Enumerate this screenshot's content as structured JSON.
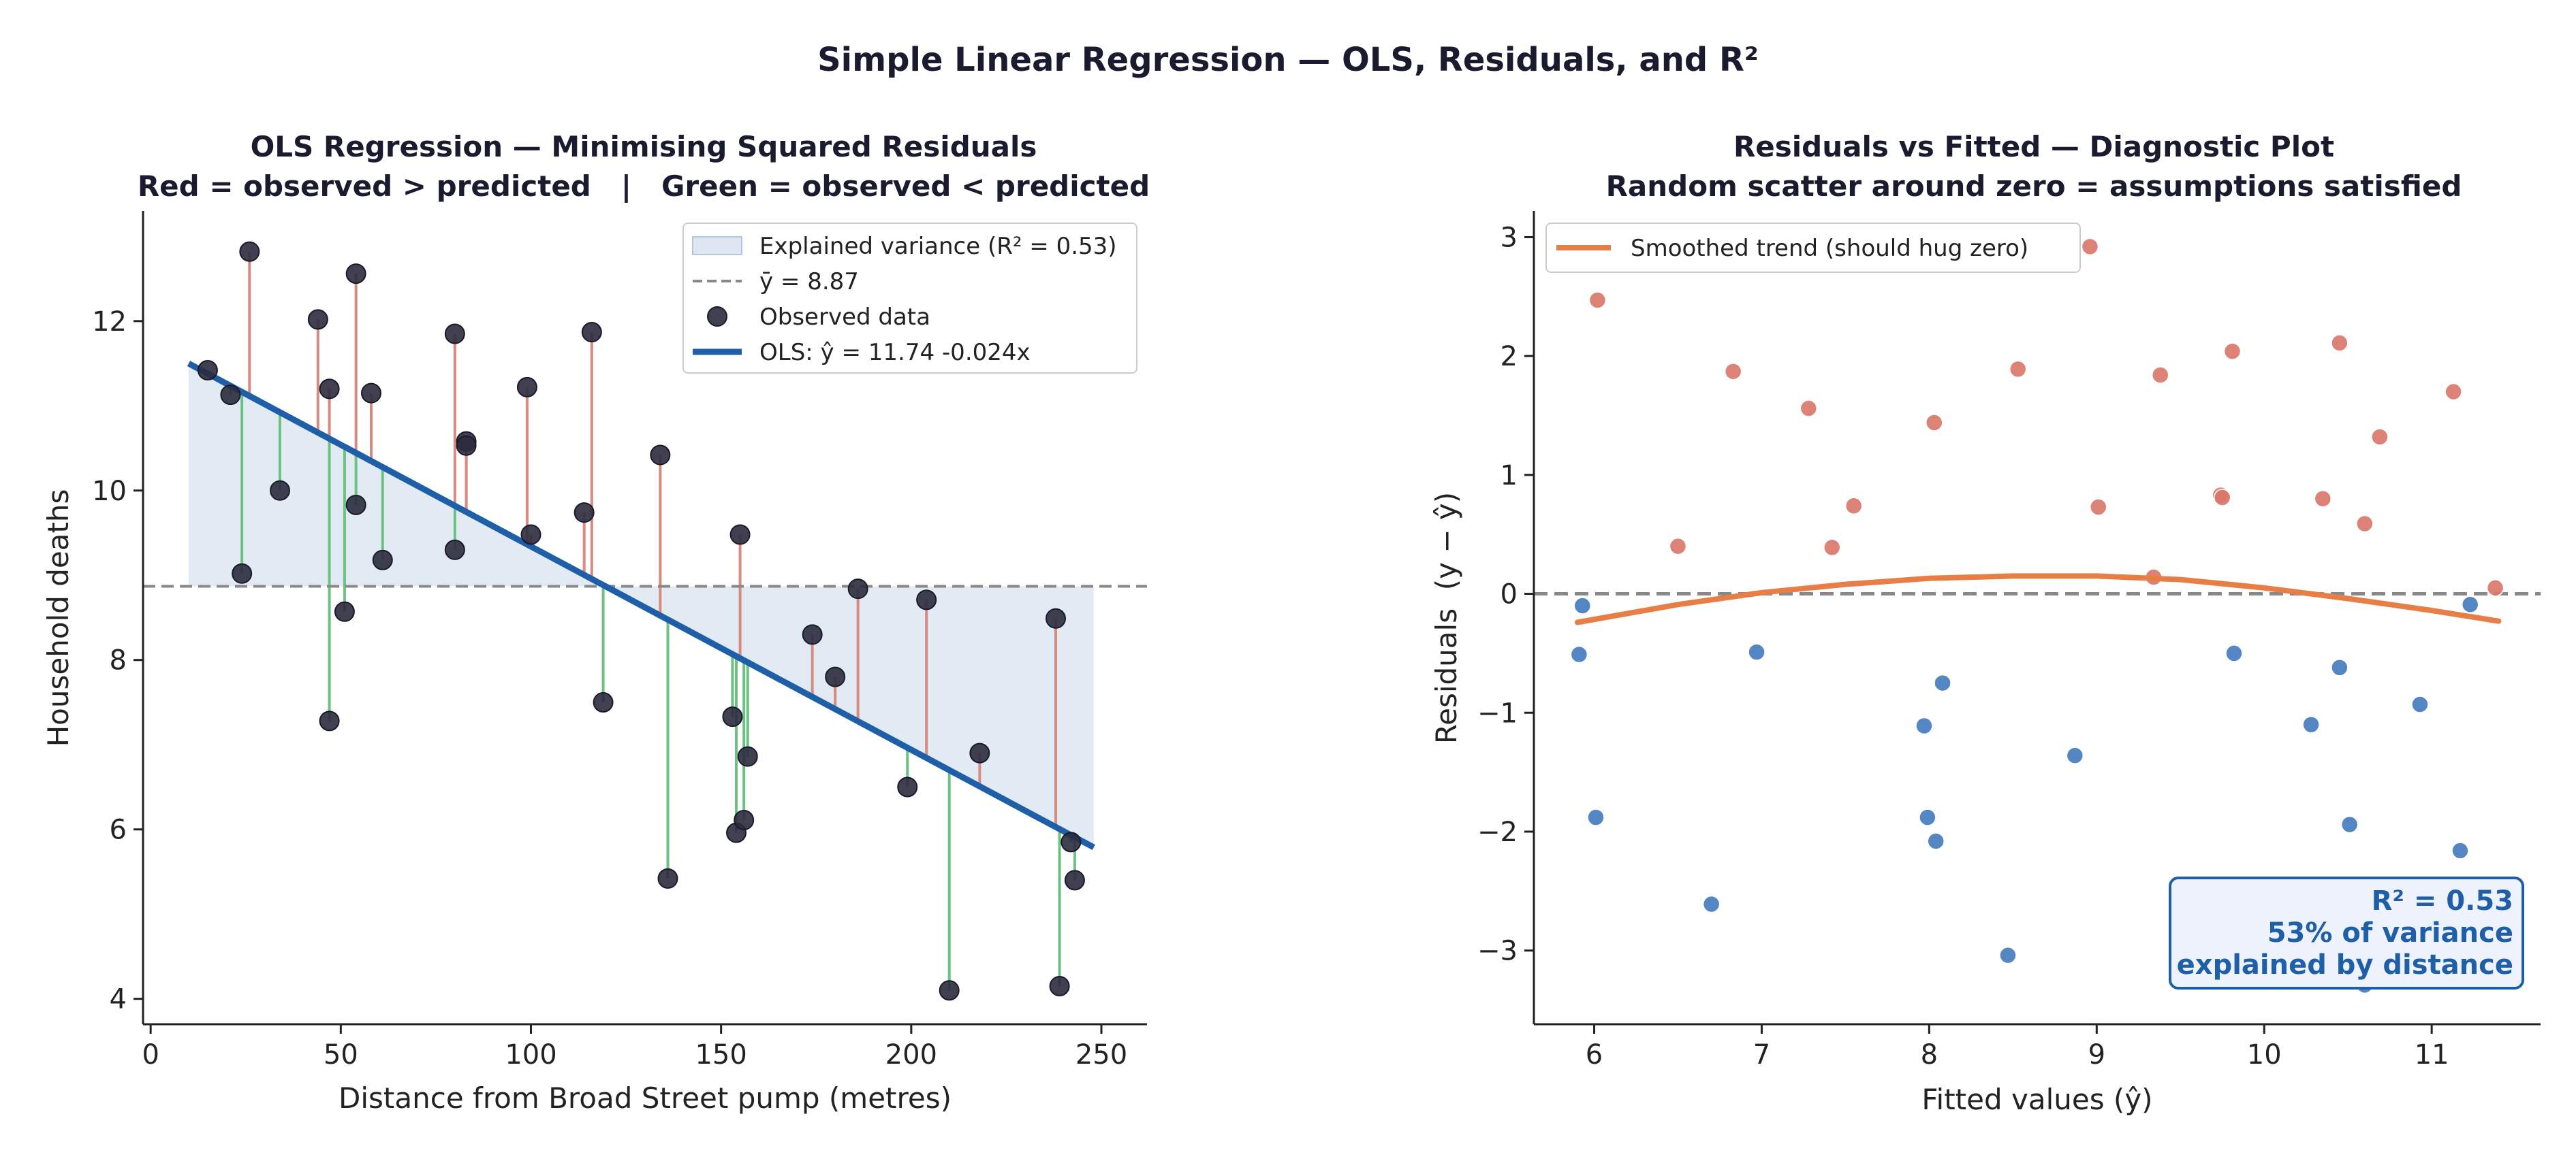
{
  "figure": {
    "suptitle": "Simple Linear Regression — OLS, Residuals, and R²"
  },
  "colors": {
    "ols_line": "#1f5fa8",
    "shade": "#dde6f2",
    "mean_line": "#888888",
    "point": "#2b2b3d",
    "residual_pos": "#d98a80",
    "residual_neg": "#6cc183",
    "resid_pos_point": "#d9776a",
    "resid_neg_point": "#4a80bf",
    "trend": "#e77e45",
    "ann_bg": "#edf2fc",
    "ann_border": "#1f5fa8"
  },
  "chart_data": [
    {
      "type": "scatter",
      "title": "OLS Regression — Minimising Squared Residuals",
      "subtitle": "Red = observed > predicted   |   Green = observed < predicted",
      "xlabel": "Distance from Broad Street pump (metres)",
      "ylabel": "Household deaths",
      "xlim": [
        -2,
        262
      ],
      "ylim": [
        3.7,
        13.3
      ],
      "xticks": [
        0,
        50,
        100,
        150,
        200,
        250
      ],
      "yticks": [
        4,
        6,
        8,
        10,
        12
      ],
      "ytick_labels": [
        "4",
        "6",
        "8",
        "10",
        "12"
      ],
      "grid": false,
      "legend": {
        "location": "upper right",
        "entries": {
          "explained": "Explained variance (R² = 0.53)",
          "mean": "ȳ = 8.87",
          "observed": "Observed data",
          "ols": "OLS: ŷ = 11.74 -0.024x"
        }
      },
      "ols": {
        "intercept": 11.74,
        "slope": -0.024,
        "x_range": [
          10,
          248
        ]
      },
      "mean_y": 8.87,
      "points": [
        [
          15,
          11.42
        ],
        [
          21,
          11.13
        ],
        [
          24,
          9.02
        ],
        [
          26,
          12.82
        ],
        [
          34,
          10.0
        ],
        [
          44,
          12.02
        ],
        [
          47,
          7.28
        ],
        [
          47,
          11.2
        ],
        [
          51,
          8.57
        ],
        [
          54,
          9.83
        ],
        [
          54,
          12.56
        ],
        [
          58,
          11.15
        ],
        [
          61,
          9.18
        ],
        [
          80,
          9.3
        ],
        [
          80,
          11.85
        ],
        [
          83,
          10.58
        ],
        [
          83,
          10.53
        ],
        [
          99,
          11.22
        ],
        [
          100,
          9.48
        ],
        [
          114,
          9.74
        ],
        [
          116,
          11.87
        ],
        [
          119,
          7.5
        ],
        [
          134,
          10.42
        ],
        [
          136,
          5.42
        ],
        [
          153,
          7.33
        ],
        [
          154,
          5.96
        ],
        [
          155,
          9.48
        ],
        [
          156,
          6.11
        ],
        [
          157,
          6.86
        ],
        [
          174,
          8.3
        ],
        [
          180,
          7.8
        ],
        [
          186,
          8.84
        ],
        [
          199,
          6.5
        ],
        [
          204,
          8.71
        ],
        [
          210,
          4.1
        ],
        [
          218,
          6.9
        ],
        [
          238,
          8.49
        ],
        [
          239,
          4.15
        ],
        [
          242,
          5.85
        ],
        [
          243,
          5.4
        ]
      ]
    },
    {
      "type": "scatter",
      "title": "Residuals vs Fitted — Diagnostic Plot",
      "subtitle": "Random scatter around zero = assumptions satisfied",
      "xlabel": "Fitted values (ŷ)",
      "ylabel": "Residuals  (y − ŷ)",
      "xlim": [
        5.64,
        11.65
      ],
      "ylim": [
        -3.62,
        3.22
      ],
      "xticks": [
        6,
        7,
        8,
        9,
        10,
        11
      ],
      "yticks": [
        -3,
        -2,
        -1,
        0,
        1,
        2,
        3
      ],
      "ytick_labels": [
        "−3",
        "−2",
        "−1",
        "0",
        "1",
        "2",
        "3"
      ],
      "grid": false,
      "legend": {
        "location": "upper left",
        "entries": {
          "trend": "Smoothed trend (should hug zero)"
        }
      },
      "zero_line": 0,
      "annotation": {
        "location": "lower right",
        "lines": [
          "R² = 0.53",
          "53% of variance",
          "explained by distance"
        ]
      },
      "trend_x": [
        5.9,
        6.5,
        7.0,
        7.5,
        8.0,
        8.5,
        9.0,
        9.5,
        10.0,
        10.5,
        11.0,
        11.4
      ],
      "trend_y": [
        -0.24,
        -0.09,
        0.01,
        0.08,
        0.13,
        0.15,
        0.15,
        0.12,
        0.05,
        -0.04,
        -0.14,
        -0.23
      ],
      "residuals_positive": [
        [
          6.02,
          2.47
        ],
        [
          6.5,
          0.4
        ],
        [
          6.83,
          1.87
        ],
        [
          7.28,
          1.56
        ],
        [
          7.42,
          0.39
        ],
        [
          7.55,
          0.74
        ],
        [
          8.03,
          1.44
        ],
        [
          8.53,
          1.89
        ],
        [
          8.96,
          2.92
        ],
        [
          9.01,
          0.73
        ],
        [
          9.34,
          0.14
        ],
        [
          9.38,
          1.84
        ],
        [
          9.74,
          0.83
        ],
        [
          9.75,
          0.81
        ],
        [
          9.81,
          2.04
        ],
        [
          10.35,
          0.8
        ],
        [
          10.45,
          2.11
        ],
        [
          10.6,
          0.59
        ],
        [
          10.69,
          1.32
        ],
        [
          11.13,
          1.7
        ],
        [
          11.38,
          0.05
        ]
      ],
      "residuals_negative": [
        [
          5.91,
          -0.51
        ],
        [
          5.93,
          -0.1
        ],
        [
          6.01,
          -1.88
        ],
        [
          6.7,
          -2.61
        ],
        [
          6.97,
          -0.49
        ],
        [
          7.97,
          -1.11
        ],
        [
          7.99,
          -1.88
        ],
        [
          8.04,
          -2.08
        ],
        [
          8.08,
          -0.75
        ],
        [
          8.47,
          -3.04
        ],
        [
          8.87,
          -1.36
        ],
        [
          9.82,
          -0.5
        ],
        [
          10.28,
          -1.1
        ],
        [
          10.45,
          -0.62
        ],
        [
          10.51,
          -1.94
        ],
        [
          10.6,
          -3.29
        ],
        [
          10.93,
          -0.93
        ],
        [
          11.17,
          -2.16
        ],
        [
          11.23,
          -0.09
        ]
      ]
    }
  ]
}
